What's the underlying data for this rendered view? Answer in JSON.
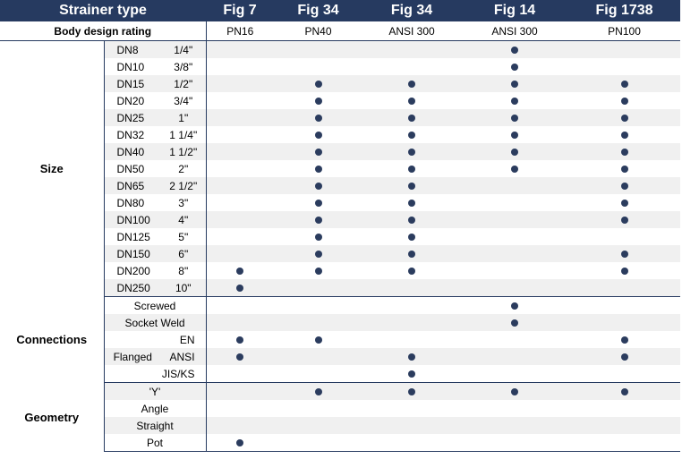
{
  "header": {
    "strainer_type_label": "Strainer type",
    "figs": [
      "Fig 7",
      "Fig 34",
      "Fig 34",
      "Fig 14",
      "Fig 1738"
    ]
  },
  "rating": {
    "label": "Body design rating",
    "values": [
      "PN16",
      "PN40",
      "ANSI 300",
      "ANSI 300",
      "PN100"
    ]
  },
  "sections": {
    "size": {
      "label": "Size",
      "rows": [
        {
          "dn": "DN8",
          "inch": "1/4\"",
          "marks": [
            false,
            false,
            false,
            true,
            false
          ]
        },
        {
          "dn": "DN10",
          "inch": "3/8\"",
          "marks": [
            false,
            false,
            false,
            true,
            false
          ]
        },
        {
          "dn": "DN15",
          "inch": "1/2\"",
          "marks": [
            false,
            true,
            true,
            true,
            true
          ]
        },
        {
          "dn": "DN20",
          "inch": "3/4\"",
          "marks": [
            false,
            true,
            true,
            true,
            true
          ]
        },
        {
          "dn": "DN25",
          "inch": "1\"",
          "marks": [
            false,
            true,
            true,
            true,
            true
          ]
        },
        {
          "dn": "DN32",
          "inch": "1 1/4\"",
          "marks": [
            false,
            true,
            true,
            true,
            true
          ]
        },
        {
          "dn": "DN40",
          "inch": "1 1/2\"",
          "marks": [
            false,
            true,
            true,
            true,
            true
          ]
        },
        {
          "dn": "DN50",
          "inch": "2\"",
          "marks": [
            false,
            true,
            true,
            true,
            true
          ]
        },
        {
          "dn": "DN65",
          "inch": "2 1/2\"",
          "marks": [
            false,
            true,
            true,
            false,
            true
          ]
        },
        {
          "dn": "DN80",
          "inch": "3\"",
          "marks": [
            false,
            true,
            true,
            false,
            true
          ]
        },
        {
          "dn": "DN100",
          "inch": "4\"",
          "marks": [
            false,
            true,
            true,
            false,
            true
          ]
        },
        {
          "dn": "DN125",
          "inch": "5\"",
          "marks": [
            false,
            true,
            true,
            false,
            false
          ]
        },
        {
          "dn": "DN150",
          "inch": "6\"",
          "marks": [
            false,
            true,
            true,
            false,
            true
          ]
        },
        {
          "dn": "DN200",
          "inch": "8\"",
          "marks": [
            true,
            true,
            true,
            false,
            true
          ]
        },
        {
          "dn": "DN250",
          "inch": "10\"",
          "marks": [
            true,
            false,
            false,
            false,
            false
          ]
        }
      ]
    },
    "connections": {
      "label": "Connections",
      "rows": [
        {
          "a": "",
          "b": "Screwed",
          "marks": [
            false,
            false,
            false,
            true,
            false
          ]
        },
        {
          "a": "",
          "b": "Socket Weld",
          "marks": [
            false,
            false,
            false,
            true,
            false
          ]
        },
        {
          "a": "",
          "b": "EN",
          "marks": [
            true,
            true,
            false,
            false,
            true
          ]
        },
        {
          "a": "Flanged",
          "b": "ANSI",
          "marks": [
            true,
            false,
            true,
            false,
            true
          ]
        },
        {
          "a": "",
          "b": "JIS/KS",
          "marks": [
            false,
            false,
            true,
            false,
            false
          ]
        }
      ]
    },
    "geometry": {
      "label": "Geometry",
      "rows": [
        {
          "b": "'Y'",
          "marks": [
            false,
            true,
            true,
            true,
            true
          ]
        },
        {
          "b": "Angle",
          "marks": [
            false,
            false,
            false,
            false,
            false
          ]
        },
        {
          "b": "Straight",
          "marks": [
            false,
            false,
            false,
            false,
            false
          ]
        },
        {
          "b": "Pot",
          "marks": [
            true,
            false,
            false,
            false,
            false
          ]
        }
      ]
    }
  },
  "colors": {
    "header_bg": "#263a60",
    "dot": "#2b3c5e",
    "stripe": "#f0f0f0"
  },
  "icons": {
    "availability_mark": "filled-circle-dot"
  }
}
